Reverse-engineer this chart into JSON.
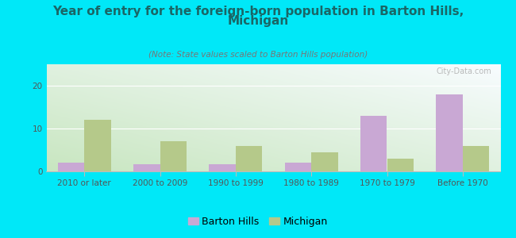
{
  "title_line1": "Year of entry for the foreign-born population in Barton Hills,",
  "title_line2": "Michigan",
  "subtitle": "(Note: State values scaled to Barton Hills population)",
  "categories": [
    "2010 or later",
    "2000 to 2009",
    "1990 to 1999",
    "1980 to 1989",
    "1970 to 1979",
    "Before 1970"
  ],
  "barton_hills": [
    2.0,
    1.7,
    1.7,
    2.0,
    13.0,
    18.0
  ],
  "michigan": [
    12.0,
    7.0,
    6.0,
    4.5,
    3.0,
    6.0
  ],
  "barton_color": "#c9a8d4",
  "michigan_color": "#b5c98a",
  "outer_bg": "#00e8f8",
  "title_color": "#1a6666",
  "subtitle_color": "#777777",
  "ylim": [
    0,
    25
  ],
  "yticks": [
    0,
    10,
    20
  ],
  "bar_width": 0.35,
  "title_fontsize": 11,
  "subtitle_fontsize": 7.5,
  "tick_fontsize": 7.5,
  "legend_fontsize": 9,
  "watermark": "City-Data.com"
}
